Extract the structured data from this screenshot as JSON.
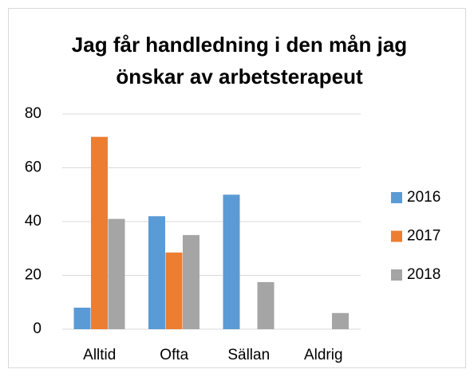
{
  "chart_data": {
    "type": "bar",
    "title": [
      "Jag får handledning i den mån jag",
      "önskar av arbetsterapeut"
    ],
    "categories": [
      "Alltid",
      "Ofta",
      "Sällan",
      "Aldrig"
    ],
    "series": [
      {
        "name": "2016",
        "color": "#5b9bd5",
        "values": [
          8,
          42,
          50,
          0
        ]
      },
      {
        "name": "2017",
        "color": "#ed7d31",
        "values": [
          71.5,
          28.5,
          0,
          0
        ]
      },
      {
        "name": "2018",
        "color": "#a5a5a5",
        "values": [
          41,
          35,
          17.5,
          6
        ]
      }
    ],
    "ylim": [
      0,
      80
    ],
    "yticks": [
      0,
      20,
      40,
      60,
      80
    ],
    "grid": true,
    "legend": "right"
  }
}
